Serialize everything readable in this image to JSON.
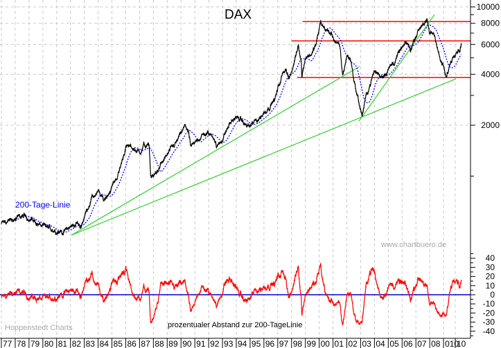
{
  "chart_data": {
    "type": "line",
    "title": "DAX",
    "y_scale": "log",
    "ylim": [
      354,
      10000
    ],
    "y_ticks": [
      10000,
      8000,
      6000,
      4000,
      2000
    ],
    "y_gridlines": [
      10000,
      8000,
      6000,
      4000,
      2000
    ],
    "y_minor_ticks": [
      9000,
      7000,
      5000,
      3000,
      1000
    ],
    "x_tick_labels": [
      "77",
      "78",
      "79",
      "80",
      "81",
      "82",
      "83",
      "84",
      "85",
      "86",
      "87",
      "88",
      "89",
      "90",
      "91",
      "92",
      "93",
      "94",
      "95",
      "96",
      "97",
      "98",
      "99",
      "00",
      "01",
      "02",
      "03",
      "04",
      "05",
      "06",
      "07",
      "08",
      "010",
      "10"
    ],
    "xlim": [
      1977.0,
      2010.9
    ],
    "grid": true,
    "series": [
      {
        "name": "DAX",
        "color": "#000000",
        "points": [
          [
            1977.0,
            525
          ],
          [
            1978.5,
            577
          ],
          [
            1979.0,
            570
          ],
          [
            1980.0,
            500
          ],
          [
            1981.5,
            469
          ],
          [
            1982.5,
            530
          ],
          [
            1982.7,
            492
          ],
          [
            1983.0,
            577
          ],
          [
            1983.5,
            738
          ],
          [
            1984.0,
            802
          ],
          [
            1984.4,
            716
          ],
          [
            1985.0,
            865
          ],
          [
            1985.5,
            1045
          ],
          [
            1986.0,
            1494
          ],
          [
            1986.3,
            1480
          ],
          [
            1986.5,
            1460
          ],
          [
            1987.0,
            1384
          ],
          [
            1987.3,
            1520
          ],
          [
            1987.7,
            1494
          ],
          [
            1987.8,
            1016
          ],
          [
            1988.0,
            980
          ],
          [
            1988.5,
            1148
          ],
          [
            1989.0,
            1322
          ],
          [
            1989.7,
            1596
          ],
          [
            1990.3,
            1963
          ],
          [
            1990.5,
            1880
          ],
          [
            1990.7,
            1480
          ],
          [
            1991.0,
            1520
          ],
          [
            1991.2,
            1670
          ],
          [
            1991.8,
            1786
          ],
          [
            1992.4,
            1720
          ],
          [
            1992.6,
            1480
          ],
          [
            1993.0,
            1670
          ],
          [
            1993.5,
            2018
          ],
          [
            1993.9,
            2220
          ],
          [
            1994.3,
            2160
          ],
          [
            1994.6,
            2018
          ],
          [
            1995.0,
            1963
          ],
          [
            1995.8,
            2260
          ],
          [
            1996.3,
            2552
          ],
          [
            1996.8,
            2860
          ],
          [
            1997.3,
            3900
          ],
          [
            1997.6,
            4400
          ],
          [
            1997.8,
            3790
          ],
          [
            1998.0,
            4010
          ],
          [
            1998.5,
            6120
          ],
          [
            1998.7,
            4840
          ],
          [
            1998.75,
            3900
          ],
          [
            1999.0,
            5080
          ],
          [
            1999.5,
            5320
          ],
          [
            1999.8,
            6060
          ],
          [
            2000.1,
            8050
          ],
          [
            2000.5,
            7330
          ],
          [
            2000.9,
            6860
          ],
          [
            2001.2,
            6250
          ],
          [
            2001.5,
            5690
          ],
          [
            2001.7,
            3900
          ],
          [
            2002.0,
            5180
          ],
          [
            2002.3,
            4840
          ],
          [
            2002.5,
            3790
          ],
          [
            2002.7,
            3140
          ],
          [
            2003.1,
            2280
          ],
          [
            2003.4,
            2940
          ],
          [
            2003.7,
            3550
          ],
          [
            2004.0,
            4170
          ],
          [
            2004.5,
            3900
          ],
          [
            2005.0,
            4290
          ],
          [
            2005.5,
            4840
          ],
          [
            2006.0,
            5690
          ],
          [
            2006.4,
            6060
          ],
          [
            2006.6,
            5540
          ],
          [
            2007.0,
            6860
          ],
          [
            2007.5,
            8130
          ],
          [
            2007.8,
            8100
          ],
          [
            2008.0,
            6860
          ],
          [
            2008.3,
            7000
          ],
          [
            2008.5,
            6250
          ],
          [
            2008.75,
            4840
          ],
          [
            2009.0,
            4400
          ],
          [
            2009.2,
            3720
          ],
          [
            2009.5,
            4690
          ],
          [
            2009.9,
            5690
          ],
          [
            2010.2,
            5700
          ],
          [
            2010.3,
            6250
          ]
        ]
      },
      {
        "name": "200-Tage-Linie",
        "color": "#0000ff",
        "style": "dotted",
        "derived_from": "DAX 200-day moving average"
      }
    ],
    "horizontal_lines": [
      {
        "value": 8200,
        "from": 1998.8,
        "color": "#ff0000"
      },
      {
        "value": 6300,
        "from": 1998.0,
        "color": "#ff0000"
      },
      {
        "value": 3830,
        "from": 1998.4,
        "color": "#ff0000"
      }
    ],
    "trend_lines": [
      {
        "from": [
          1982.07,
          448
        ],
        "to": [
          2002.93,
          4450
        ],
        "color": "#33cc33"
      },
      {
        "from": [
          1982.07,
          448
        ],
        "to": [
          2009.9,
          3760
        ],
        "color": "#33cc33"
      },
      {
        "from": [
          2002.88,
          2113
        ],
        "to": [
          2008.35,
          9020
        ],
        "color": "#33cc33"
      }
    ],
    "annotations": {
      "ma_label": "200-Tage-Linie",
      "watermark": "www.chartbuero.de",
      "source": "Hoppenstedt Charts"
    },
    "oscillator": {
      "label": "prozentualer Abstand zur 200-TageLinie",
      "unit": "%",
      "ylim": [
        -45,
        45
      ],
      "y_ticks": [
        "40",
        "30",
        "20",
        "10",
        "0",
        "-10",
        "-20",
        "-30",
        "-40"
      ],
      "zero_line_color": "#0000cc",
      "color": "#ff0000"
    }
  }
}
